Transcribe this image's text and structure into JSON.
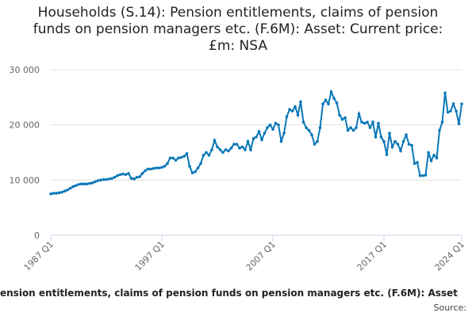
{
  "chart_data": {
    "type": "line",
    "title": "Households (S.14): Pension entitlements, claims of pension funds on pension managers etc. (F.6M): Asset: Current price: £m: NSA",
    "legend": "ension entitlements, claims of pension funds on pension managers etc. (F.6M): Asset",
    "source": "Source:",
    "categories": [
      "1987 Q1",
      null,
      null,
      null,
      null,
      null,
      null,
      null,
      null,
      null,
      null,
      null,
      null,
      null,
      null,
      null,
      null,
      null,
      null,
      null,
      null,
      null,
      null,
      null,
      null,
      null,
      null,
      null,
      null,
      null,
      null,
      null,
      null,
      null,
      null,
      null,
      null,
      null,
      null,
      null,
      "1997 Q1",
      null,
      null,
      null,
      null,
      null,
      null,
      null,
      null,
      null,
      null,
      null,
      null,
      null,
      null,
      null,
      null,
      null,
      null,
      null,
      null,
      null,
      null,
      null,
      null,
      null,
      null,
      null,
      null,
      null,
      null,
      null,
      null,
      null,
      null,
      null,
      null,
      null,
      null,
      null,
      "2007 Q1",
      null,
      null,
      null,
      null,
      null,
      null,
      null,
      null,
      null,
      null,
      null,
      null,
      null,
      null,
      null,
      null,
      null,
      null,
      null,
      null,
      null,
      null,
      null,
      null,
      null,
      null,
      null,
      null,
      null,
      null,
      null,
      null,
      null,
      null,
      null,
      null,
      null,
      null,
      null,
      "2017 Q1",
      null,
      null,
      null,
      null,
      null,
      null,
      null,
      null,
      null,
      null,
      null,
      null,
      null,
      null,
      null,
      null,
      null,
      null,
      null,
      null,
      null,
      null,
      null,
      null,
      null,
      null,
      null,
      "2024 Q1"
    ],
    "series": [
      {
        "color": "#0a77b8",
        "values": [
          7500,
          7600,
          7600,
          7700,
          7800,
          8000,
          8200,
          8500,
          8800,
          9000,
          9200,
          9300,
          9300,
          9300,
          9400,
          9500,
          9700,
          9900,
          10000,
          10100,
          10100,
          10200,
          10300,
          10500,
          10800,
          11000,
          11100,
          11000,
          11200,
          10300,
          10200,
          10500,
          10600,
          11200,
          11700,
          12000,
          12000,
          12100,
          12200,
          12200,
          12300,
          12500,
          13000,
          14000,
          14000,
          13600,
          14000,
          14100,
          14300,
          14800,
          12500,
          11300,
          11500,
          12200,
          13000,
          14500,
          15000,
          14500,
          15500,
          17200,
          16000,
          15500,
          15000,
          15500,
          15300,
          15800,
          16500,
          16500,
          15800,
          16000,
          15500,
          17000,
          15500,
          17500,
          17800,
          18800,
          17300,
          18500,
          19500,
          20000,
          19200,
          20300,
          20000,
          17000,
          18500,
          21500,
          22800,
          22500,
          23300,
          21800,
          24200,
          20500,
          19500,
          19000,
          18200,
          16500,
          17000,
          19500,
          23800,
          24500,
          23800,
          26000,
          24800,
          24000,
          21800,
          21000,
          21300,
          19000,
          19500,
          19000,
          19500,
          22000,
          20500,
          20300,
          20500,
          19500,
          20500,
          17800,
          20300,
          17800,
          17000,
          14600,
          18500,
          16000,
          17000,
          16500,
          15300,
          17000,
          18200,
          16500,
          16300,
          13000,
          13200,
          10800,
          10800,
          10900,
          15000,
          13500,
          14500,
          14000,
          19000,
          20500,
          25800,
          22300,
          22500,
          23800,
          22500,
          20200,
          23800
        ]
      }
    ],
    "ylim": [
      0,
      30000
    ],
    "yticks": [
      0,
      {
        "value": 10000,
        "label": "10 000"
      },
      {
        "value": 20000,
        "label": "20 000"
      },
      {
        "value": 30000,
        "label": "30 000"
      }
    ],
    "grid": true
  }
}
